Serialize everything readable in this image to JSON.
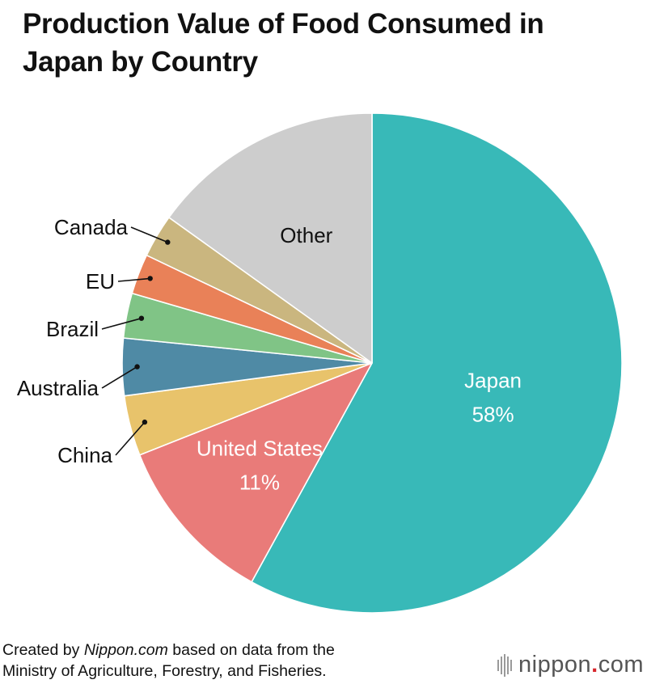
{
  "title": {
    "line1": "Production Value of Food Consumed in",
    "line2": "Japan by Country"
  },
  "chart_data": {
    "type": "pie",
    "title": "Production Value of Food Consumed in Japan by Country",
    "slices": [
      {
        "label": "Japan",
        "value": 58,
        "value_label": "58%",
        "color": "#38b9b8",
        "label_style": "inside-white"
      },
      {
        "label": "United States",
        "value": 11,
        "value_label": "11%",
        "color": "#e97b79",
        "label_style": "inside-white"
      },
      {
        "label": "China",
        "value": 3.9,
        "color": "#e8c36b",
        "label_style": "leader"
      },
      {
        "label": "Australia",
        "value": 3.7,
        "color": "#4f8aa5",
        "label_style": "leader"
      },
      {
        "label": "Brazil",
        "value": 2.9,
        "color": "#80c486",
        "label_style": "leader"
      },
      {
        "label": "EU",
        "value": 2.6,
        "color": "#e98158",
        "label_style": "leader"
      },
      {
        "label": "Canada",
        "value": 2.8,
        "color": "#cab67f",
        "label_style": "leader"
      },
      {
        "label": "Other",
        "value": 15.1,
        "color": "#cdcdcd",
        "label_style": "inside-dark"
      }
    ]
  },
  "footer": {
    "prefix": "Created by ",
    "source_name": "Nippon.com",
    "suffix": " based on data from the",
    "line2": "Ministry of Agriculture, Forestry, and Fisheries."
  },
  "brand": {
    "name": "nippon",
    "dot": ".",
    "tld": "com"
  }
}
